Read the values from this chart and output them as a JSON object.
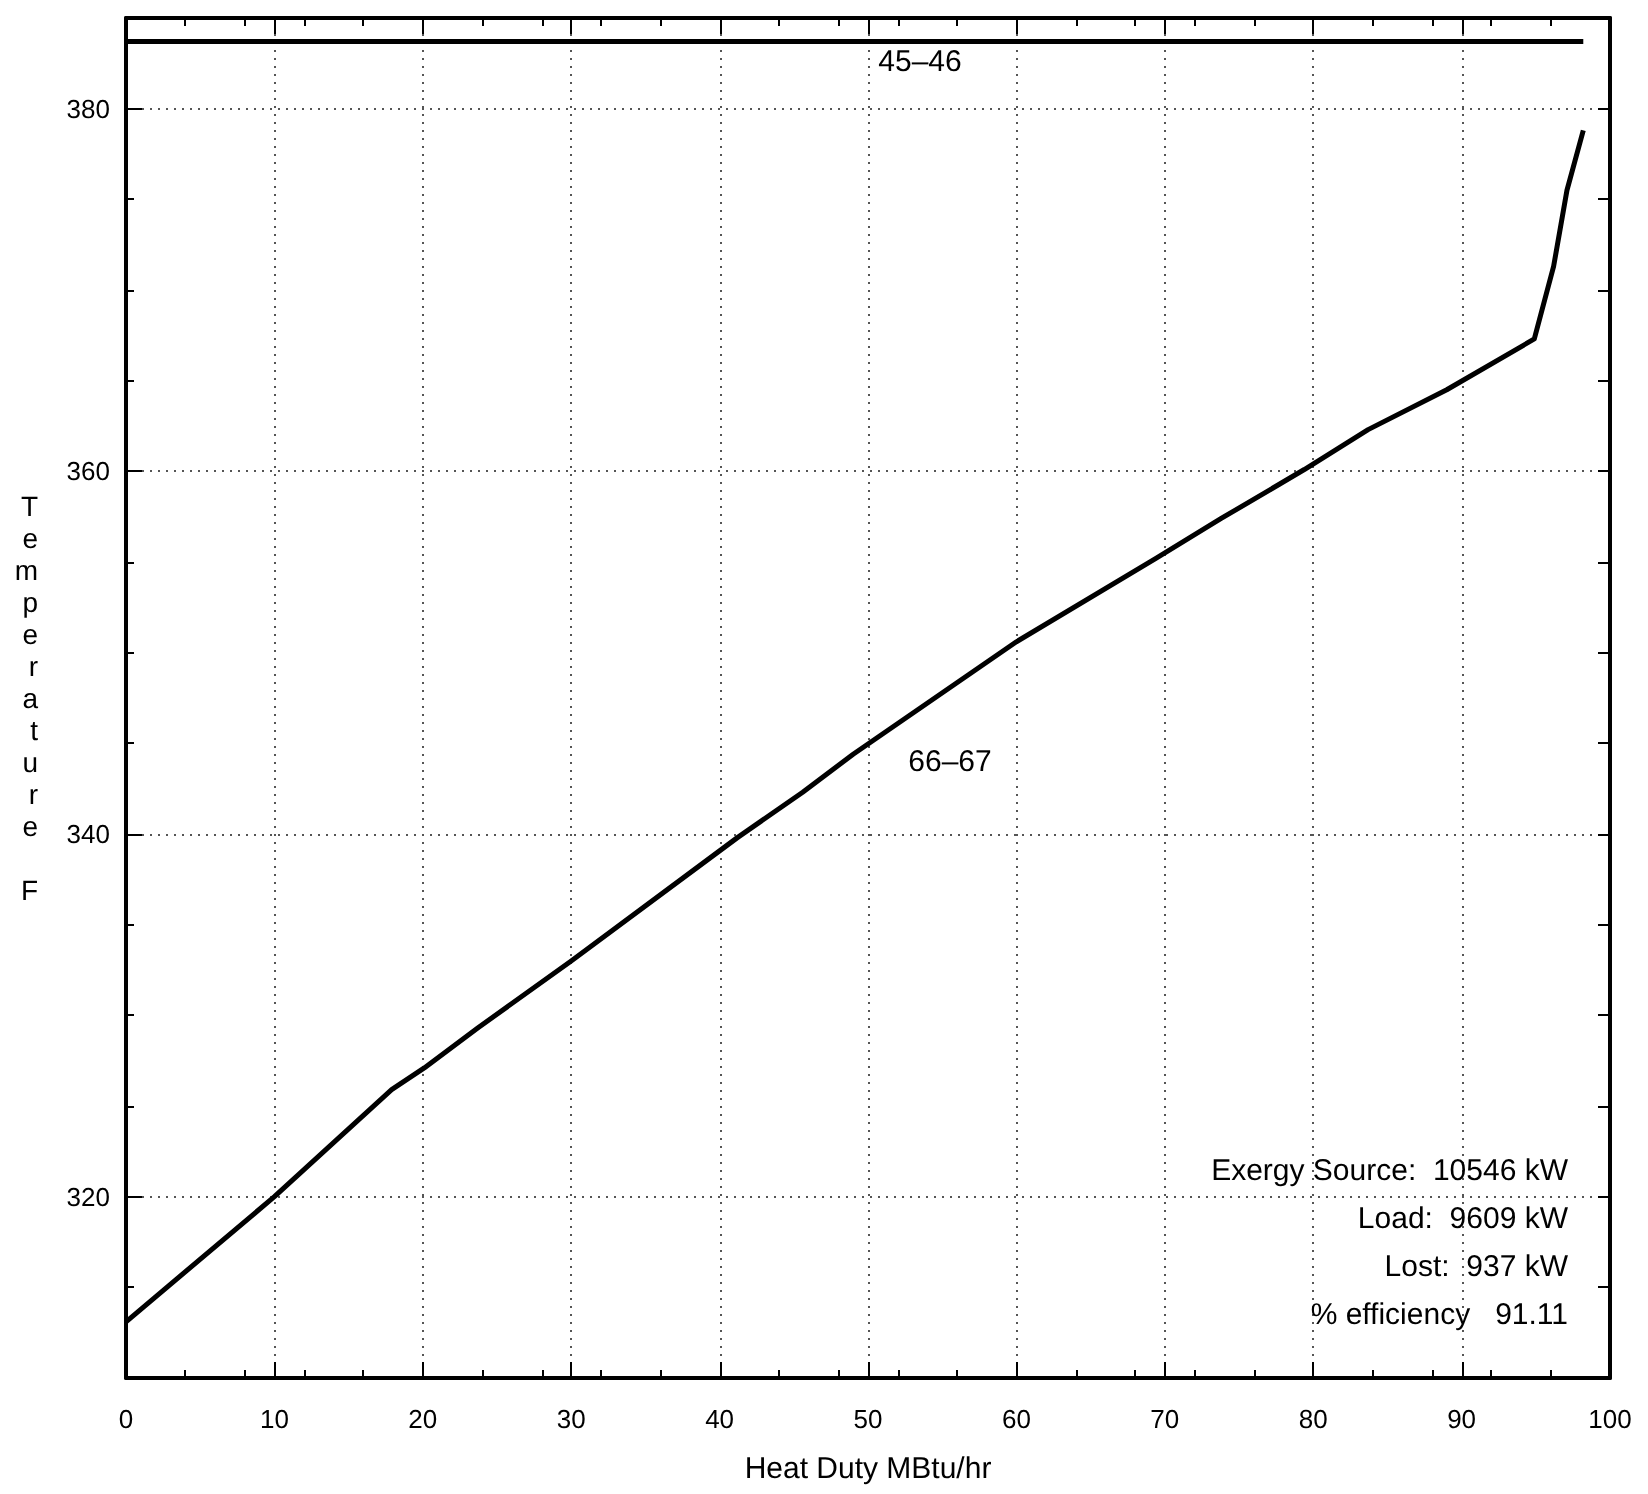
{
  "chart_data": {
    "type": "line",
    "xlabel": "Heat Duty MBtu/hr",
    "ylabel": "Temperature F",
    "xlim": [
      0,
      100
    ],
    "xticks": [
      0,
      10,
      20,
      30,
      40,
      50,
      60,
      70,
      80,
      90,
      100
    ],
    "ylim": [
      310,
      385
    ],
    "yticks": [
      320,
      340,
      360,
      380
    ],
    "grid": true,
    "marker": "none",
    "line_style": "solid",
    "series": [
      {
        "color": "#000000",
        "x": [
          0,
          98.2
        ],
        "values": [
          383.7,
          383.7
        ]
      },
      {
        "color": "#000000",
        "x": [
          0,
          10,
          17.9,
          20.1,
          23.7,
          30,
          41.2,
          45.6,
          49,
          60,
          69.4,
          73.8,
          79.4,
          83.7,
          89,
          94.9,
          96.2,
          97.1,
          98.2
        ],
        "values": [
          313.1,
          320,
          325.9,
          327.1,
          329.3,
          333,
          339.8,
          342.3,
          344.4,
          350.6,
          355.2,
          357.4,
          360.1,
          362.3,
          364.5,
          367.3,
          371.3,
          375.5,
          378.8
        ]
      }
    ],
    "annotations": [
      "45–46",
      "66–67",
      "Exergy Source:  10546 kW",
      "Load:  9609 kW",
      "Lost:  937 kW",
      "% efficiency   91.11"
    ]
  }
}
